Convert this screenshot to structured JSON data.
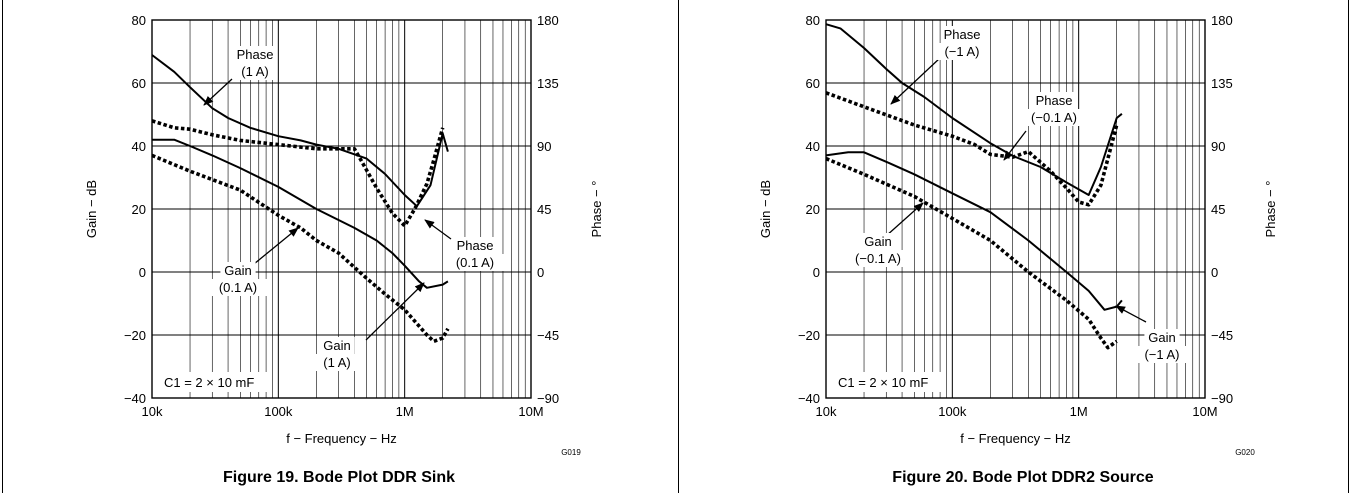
{
  "chart_data": [
    {
      "type": "line",
      "figure_id": "G019",
      "caption": "Figure 19. Bode Plot DDR Sink",
      "xlabel": "f − Frequency − Hz",
      "ylabel": "Gain − dB",
      "y2label": "Phase − °",
      "xscale": "log",
      "xlim": [
        10000,
        10000000
      ],
      "ylim": [
        -40,
        80
      ],
      "y2lim": [
        -90,
        180
      ],
      "xticks": [
        "10k",
        "100k",
        "1M",
        "10M"
      ],
      "yticks": [
        "−40",
        "−20",
        "0",
        "20",
        "40",
        "60",
        "80"
      ],
      "y2ticks": [
        "−90",
        "−45",
        "0",
        "45",
        "90",
        "135",
        "180"
      ],
      "grid": true,
      "note": "C1 = 2 × 10 mF",
      "series": [
        {
          "name": "Phase (1 A)",
          "axis": "right",
          "style": "solid",
          "x": [
            10000,
            15000,
            20000,
            30000,
            40000,
            60000,
            100000,
            150000,
            200000,
            300000,
            500000,
            700000,
            1000000,
            1250000,
            1600000,
            2000000,
            2200000
          ],
          "y": [
            155,
            143,
            132,
            117,
            110,
            103,
            97,
            94,
            91,
            88,
            81,
            70,
            55,
            47,
            62,
            99,
            86
          ]
        },
        {
          "name": "Phase (0.1 A)",
          "axis": "right",
          "style": "dotted",
          "x": [
            10000,
            15000,
            20000,
            30000,
            50000,
            100000,
            200000,
            400000,
            450000,
            600000,
            800000,
            1000000,
            1200000,
            1500000,
            1700000,
            2000000
          ],
          "y": [
            108,
            103,
            102,
            98,
            94,
            91,
            88,
            88,
            80,
            60,
            42,
            33,
            45,
            63,
            80,
            103
          ]
        },
        {
          "name": "Gain (1 A)",
          "axis": "left",
          "style": "solid",
          "x": [
            10000,
            15000,
            20000,
            30000,
            50000,
            100000,
            200000,
            400000,
            600000,
            800000,
            1000000,
            1300000,
            1500000,
            2000000,
            2200000
          ],
          "y": [
            42,
            42,
            40,
            37,
            33,
            27,
            20,
            14,
            10,
            6,
            2,
            -3,
            -5,
            -4,
            -3
          ]
        },
        {
          "name": "Gain (0.1 A)",
          "axis": "left",
          "style": "dotted",
          "x": [
            10000,
            20000,
            50000,
            100000,
            150000,
            200000,
            300000,
            500000,
            700000,
            1000000,
            1500000,
            1700000,
            2000000,
            2200000
          ],
          "y": [
            37,
            32,
            26,
            18,
            14,
            10,
            6,
            -2,
            -7,
            -12,
            -20,
            -22,
            -21,
            -18
          ]
        }
      ],
      "annotations": [
        {
          "text": [
            "Phase",
            "(1 A)"
          ]
        },
        {
          "text": [
            "Phase",
            "(0.1 A)"
          ]
        },
        {
          "text": [
            "Gain",
            "(0.1 A)"
          ]
        },
        {
          "text": [
            "Gain",
            "(1 A)"
          ]
        }
      ]
    },
    {
      "type": "line",
      "figure_id": "G020",
      "caption": "Figure 20. Bode Plot DDR2 Source",
      "xlabel": "f − Frequency − Hz",
      "ylabel": "Gain − dB",
      "y2label": "Phase − °",
      "xscale": "log",
      "xlim": [
        10000,
        10000000
      ],
      "ylim": [
        -40,
        80
      ],
      "y2lim": [
        -90,
        180
      ],
      "xticks": [
        "10k",
        "100k",
        "1M",
        "10M"
      ],
      "yticks": [
        "−40",
        "−20",
        "0",
        "20",
        "40",
        "60",
        "80"
      ],
      "y2ticks": [
        "−90",
        "−45",
        "0",
        "45",
        "90",
        "135",
        "180"
      ],
      "grid": true,
      "note": "C1 = 2 × 10 mF",
      "series": [
        {
          "name": "Phase (−1 A)",
          "axis": "right",
          "style": "solid",
          "x": [
            10000,
            13000,
            20000,
            30000,
            40000,
            60000,
            100000,
            200000,
            300000,
            500000,
            800000,
            1200000,
            1500000,
            2000000,
            2200000
          ],
          "y": [
            177,
            174,
            160,
            145,
            135,
            125,
            110,
            92,
            83,
            75,
            64,
            55,
            75,
            110,
            113
          ]
        },
        {
          "name": "Phase (−0.1 A)",
          "axis": "right",
          "style": "dotted",
          "x": [
            10000,
            20000,
            50000,
            100000,
            150000,
            200000,
            300000,
            400000,
            600000,
            800000,
            1000000,
            1200000,
            1500000,
            2000000
          ],
          "y": [
            128,
            118,
            105,
            97,
            91,
            84,
            82,
            86,
            72,
            60,
            50,
            48,
            62,
            105
          ]
        },
        {
          "name": "Gain (−1 A)",
          "axis": "left",
          "style": "solid",
          "x": [
            10000,
            15000,
            20000,
            30000,
            50000,
            100000,
            200000,
            400000,
            800000,
            1200000,
            1600000,
            2000000,
            2200000
          ],
          "y": [
            37,
            38,
            38,
            35,
            31,
            25,
            19,
            10,
            0,
            -6,
            -12,
            -11,
            -9
          ]
        },
        {
          "name": "Gain (−0.1 A)",
          "axis": "left",
          "style": "dotted",
          "x": [
            10000,
            20000,
            50000,
            100000,
            200000,
            400000,
            800000,
            1200000,
            1500000,
            1700000,
            2000000
          ],
          "y": [
            36,
            31,
            24,
            17,
            10,
            0,
            -9,
            -15,
            -21,
            -24,
            -22
          ]
        }
      ],
      "annotations": [
        {
          "text": [
            "Phase",
            "(−1 A)"
          ]
        },
        {
          "text": [
            "Phase",
            "(−0.1 A)"
          ]
        },
        {
          "text": [
            "Gain",
            "(−0.1 A)"
          ]
        },
        {
          "text": [
            "Gain",
            "(−1 A)"
          ]
        }
      ]
    }
  ]
}
